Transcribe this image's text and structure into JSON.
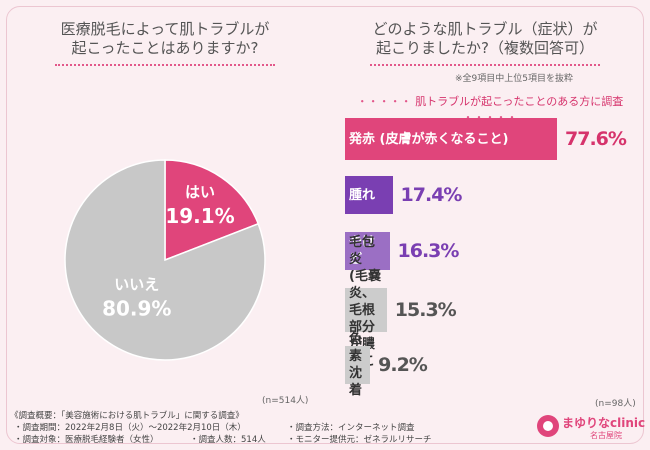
{
  "chart_data": [
    {
      "type": "pie",
      "title": "医療脱毛によって肌トラブルが\n起こったことはありますか?",
      "categories": [
        "はい",
        "いいえ"
      ],
      "values": [
        19.1,
        80.9
      ],
      "value_labels": [
        "19.1%",
        "80.9%"
      ],
      "colors": [
        "#e0457b",
        "#c8c8c8"
      ],
      "note": "(n=514人)"
    },
    {
      "type": "bar",
      "orientation": "horizontal",
      "title": "どのような肌トラブル（症状）が\n起こりましたか?（複数回答可）",
      "annotation": "※全9項目中上位5項目を抜粋",
      "subtitle": "肌トラブルが起こったことのある方に調査",
      "categories": [
        "発赤 (皮膚が赤くなること)",
        "腫れ",
        "やけど",
        "毛包炎\n(毛嚢炎、毛根部分が膿むこと)",
        "色素沈着"
      ],
      "values": [
        77.6,
        17.4,
        16.3,
        15.3,
        9.2
      ],
      "value_labels": [
        "77.6%",
        "17.4%",
        "16.3%",
        "15.3%",
        "9.2%"
      ],
      "colors": [
        "#e0457b",
        "#7a3fb2",
        "#9b6fc4",
        "#cccccc",
        "#cccccc"
      ],
      "label_colors": [
        "#ffffff",
        "#ffffff",
        "#ffffff",
        "#333333",
        "#333333"
      ],
      "value_colors": [
        "#d6336c",
        "#7a3fb2",
        "#7a3fb2",
        "#555555",
        "#555555"
      ],
      "note": "(n=98人)"
    }
  ],
  "footer": [
    "《調査概要：「美容施術における肌トラブル」に関する調査》",
    "・調査期間：2022年2月8日（火）～2022年2月10日（木）",
    "・調査方法：インターネット調査",
    "・調査対象：医療脱毛経験者（女性）",
    "・調査人数：514人",
    "・モニター提供元：ゼネラルリサーチ"
  ],
  "logo": {
    "name": "まゆりなclinic",
    "branch": "名古屋院"
  }
}
